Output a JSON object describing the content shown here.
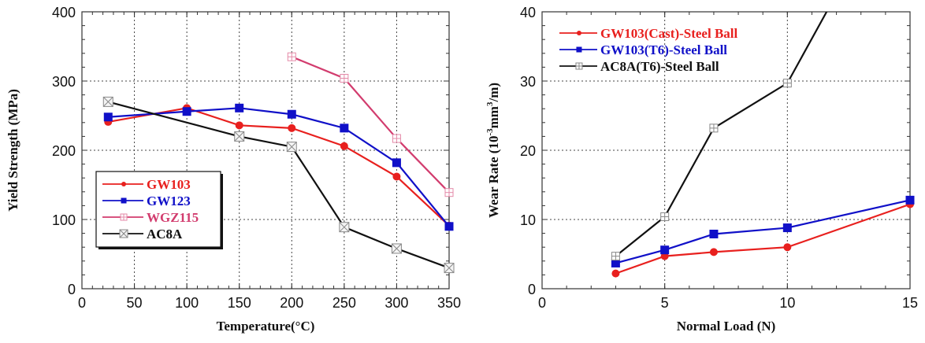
{
  "chart_data": [
    {
      "type": "line",
      "title": "",
      "xlabel": "Temperature(°C)",
      "ylabel": "Yield Strength (MPa)",
      "xlim": [
        0,
        350
      ],
      "ylim": [
        0,
        400
      ],
      "xticks": [
        0,
        50,
        100,
        150,
        200,
        250,
        300,
        350
      ],
      "yticks": [
        0,
        100,
        200,
        300,
        400
      ],
      "xtick_labels": [
        "0",
        "50",
        "100",
        "150",
        "200",
        "250",
        "300",
        "350"
      ],
      "ytick_labels": [
        "0",
        "100",
        "200",
        "300",
        "400"
      ],
      "grid": true,
      "legend_position": "lower-left",
      "series": [
        {
          "name": "GW103",
          "color": "#e8201e",
          "marker": "circle",
          "x": [
            25,
            100,
            150,
            200,
            250,
            300,
            350
          ],
          "y": [
            241,
            261,
            236,
            232,
            206,
            162,
            91
          ]
        },
        {
          "name": "GW123",
          "color": "#1010c8",
          "marker": "square",
          "x": [
            25,
            100,
            150,
            200,
            250,
            300,
            350
          ],
          "y": [
            248,
            256,
            261,
            252,
            232,
            182,
            90
          ]
        },
        {
          "name": "WGZ115",
          "color": "#d23c6e",
          "marker": "open-square-cross",
          "x": [
            200,
            250,
            300,
            350
          ],
          "y": [
            335,
            304,
            217,
            139
          ]
        },
        {
          "name": "AC8A",
          "color": "#111111",
          "marker": "open-square-x",
          "x": [
            25,
            150,
            200,
            250,
            300,
            350
          ],
          "y": [
            270,
            220,
            205,
            89,
            58,
            30
          ]
        }
      ]
    },
    {
      "type": "line",
      "title": "",
      "xlabel": "Normal Load (N)",
      "ylabel": "Wear Rate (10⁻³mm³/m)",
      "ylabel_parts": {
        "base": "Wear Rate (10",
        "exp1": "-3",
        "mid": "mm",
        "exp2": "3",
        "end": "/m)"
      },
      "xlim": [
        0,
        15
      ],
      "ylim": [
        0,
        40
      ],
      "xticks": [
        0,
        5,
        10,
        15
      ],
      "yticks": [
        0,
        10,
        20,
        30,
        40
      ],
      "xtick_labels": [
        "0",
        "5",
        "10",
        "15"
      ],
      "ytick_labels": [
        "0",
        "10",
        "20",
        "30",
        "40"
      ],
      "grid": true,
      "legend_position": "top-left",
      "series": [
        {
          "name": "GW103(Cast)-Steel Ball",
          "color": "#e8201e",
          "marker": "circle",
          "x": [
            3,
            5,
            7,
            10,
            15
          ],
          "y": [
            2.2,
            4.7,
            5.3,
            6.0,
            12.2
          ]
        },
        {
          "name": "GW103(T6)-Steel Ball",
          "color": "#1010c8",
          "marker": "square",
          "x": [
            3,
            5,
            7,
            10,
            15
          ],
          "y": [
            3.7,
            5.6,
            7.9,
            8.8,
            12.8
          ]
        },
        {
          "name": "AC8A(T6)-Steel Ball",
          "color": "#111111",
          "marker": "open-square-cross",
          "x": [
            3,
            5,
            7,
            10,
            11.6
          ],
          "y": [
            4.7,
            10.4,
            23.2,
            29.7,
            40
          ]
        }
      ]
    }
  ]
}
